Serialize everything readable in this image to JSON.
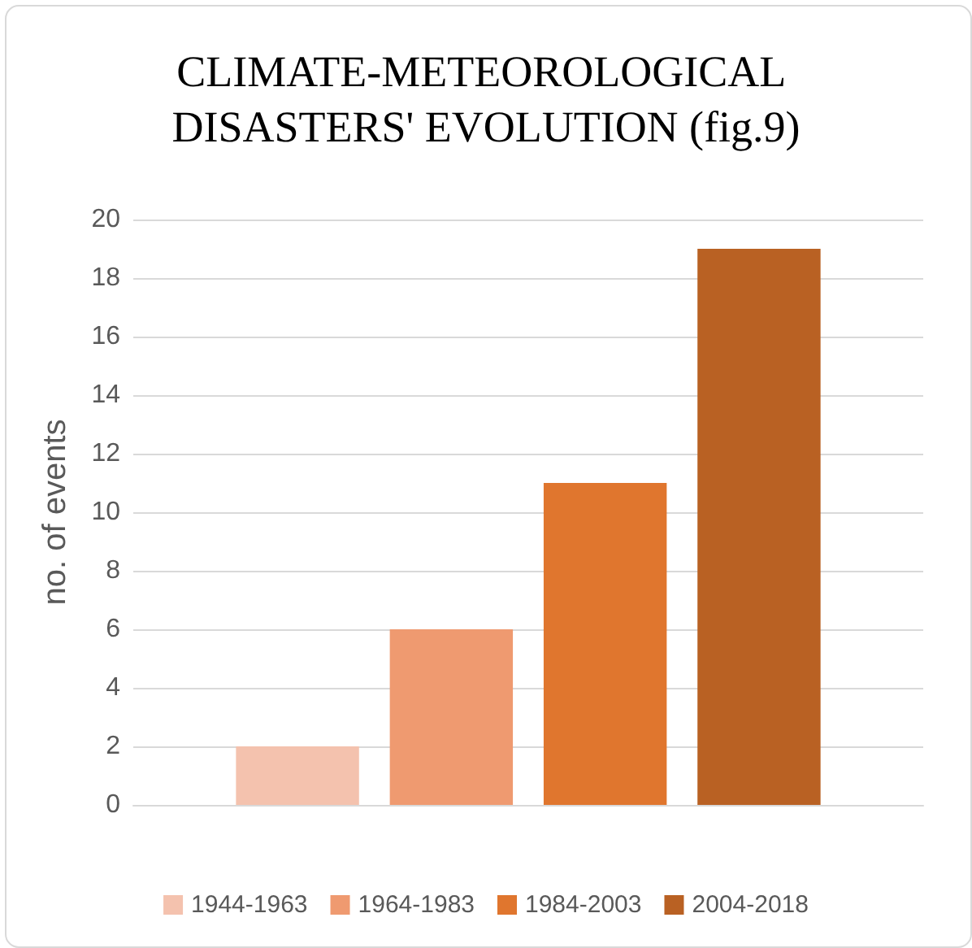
{
  "chart_data": {
    "type": "bar",
    "title": "CLIMATE-METEOROLOGICAL DISASTERS' EVOLUTION (fig.9)",
    "ylabel": "no. of events",
    "categories": [
      null
    ],
    "series": [
      {
        "name": "1944-1963",
        "color": "#f4c2ae",
        "values": [
          2
        ]
      },
      {
        "name": "1964-1983",
        "color": "#ef9a70",
        "values": [
          6
        ]
      },
      {
        "name": "1984-2003",
        "color": "#e0762e",
        "values": [
          11
        ]
      },
      {
        "name": "2004-2018",
        "color": "#b96123",
        "values": [
          19
        ]
      }
    ],
    "ylim": [
      0,
      20
    ],
    "yticks": [
      0,
      2,
      4,
      6,
      8,
      10,
      12,
      14,
      16,
      18,
      20
    ],
    "grid": "y",
    "legend": "bottom"
  }
}
